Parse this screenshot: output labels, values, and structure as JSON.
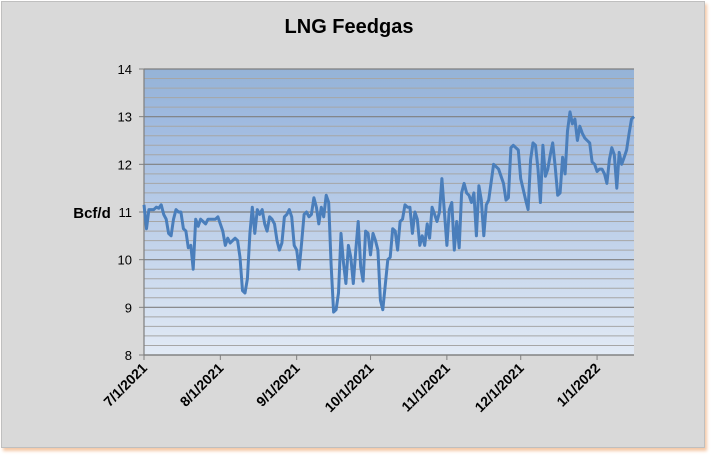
{
  "chart_data": {
    "type": "line",
    "title": "LNG Feedgas",
    "xlabel": "",
    "ylabel": "Bcf/d",
    "ylim": [
      8,
      14
    ],
    "yticks": [
      8,
      9,
      10,
      11,
      12,
      13,
      14
    ],
    "ytick_labels": [
      "8",
      "9",
      "10",
      "11",
      "12",
      "13",
      "14"
    ],
    "minor_grid_step": 0.2,
    "x_units": "days since 7/1/2021",
    "xlim": [
      0,
      199
    ],
    "xticks": [
      0,
      31,
      62,
      92,
      123,
      153,
      184
    ],
    "xtick_labels": [
      "7/1/2021",
      "8/1/2021",
      "9/1/2021",
      "10/1/2021",
      "11/1/2021",
      "12/1/2021",
      "1/1/2022"
    ],
    "grid": true,
    "legend": "none",
    "series": [
      {
        "name": "LNG Feedgas",
        "color": "#4a7ebb",
        "points": [
          [
            0,
            11.15
          ],
          [
            1,
            10.65
          ],
          [
            2,
            11.05
          ],
          [
            4,
            11.05
          ],
          [
            5,
            11.1
          ],
          [
            6,
            11.08
          ],
          [
            7,
            11.15
          ],
          [
            8,
            10.95
          ],
          [
            9,
            10.85
          ],
          [
            10,
            10.55
          ],
          [
            11,
            10.5
          ],
          [
            12,
            10.85
          ],
          [
            13,
            11.05
          ],
          [
            14,
            11.0
          ],
          [
            15,
            11.0
          ],
          [
            16,
            10.65
          ],
          [
            17,
            10.6
          ],
          [
            18,
            10.25
          ],
          [
            19,
            10.3
          ],
          [
            20,
            9.8
          ],
          [
            21,
            10.85
          ],
          [
            22,
            10.7
          ],
          [
            23,
            10.85
          ],
          [
            24,
            10.8
          ],
          [
            25,
            10.75
          ],
          [
            26,
            10.85
          ],
          [
            28,
            10.85
          ],
          [
            29,
            10.85
          ],
          [
            30,
            10.9
          ],
          [
            31,
            10.75
          ],
          [
            32,
            10.6
          ],
          [
            33,
            10.3
          ],
          [
            34,
            10.45
          ],
          [
            35,
            10.35
          ],
          [
            36,
            10.4
          ],
          [
            37,
            10.45
          ],
          [
            38,
            10.4
          ],
          [
            39,
            10.05
          ],
          [
            40,
            9.35
          ],
          [
            41,
            9.3
          ],
          [
            42,
            9.6
          ],
          [
            43,
            10.55
          ],
          [
            44,
            11.1
          ],
          [
            45,
            10.55
          ],
          [
            46,
            11.05
          ],
          [
            47,
            10.95
          ],
          [
            48,
            11.05
          ],
          [
            49,
            10.75
          ],
          [
            50,
            10.6
          ],
          [
            51,
            10.9
          ],
          [
            52,
            10.85
          ],
          [
            53,
            10.75
          ],
          [
            54,
            10.4
          ],
          [
            55,
            10.2
          ],
          [
            56,
            10.35
          ],
          [
            57,
            10.9
          ],
          [
            58,
            10.95
          ],
          [
            59,
            11.05
          ],
          [
            60,
            10.9
          ],
          [
            61,
            10.3
          ],
          [
            62,
            10.2
          ],
          [
            63,
            9.8
          ],
          [
            64,
            10.35
          ],
          [
            65,
            10.95
          ],
          [
            66,
            11.0
          ],
          [
            67,
            10.9
          ],
          [
            68,
            10.95
          ],
          [
            69,
            11.3
          ],
          [
            70,
            11.1
          ],
          [
            71,
            10.75
          ],
          [
            72,
            11.1
          ],
          [
            73,
            10.9
          ],
          [
            74,
            11.35
          ],
          [
            75,
            11.2
          ],
          [
            76,
            9.9
          ],
          [
            77,
            8.9
          ],
          [
            78,
            8.95
          ],
          [
            79,
            9.3
          ],
          [
            80,
            10.55
          ],
          [
            81,
            9.95
          ],
          [
            82,
            9.5
          ],
          [
            83,
            10.3
          ],
          [
            84,
            10.05
          ],
          [
            85,
            9.5
          ],
          [
            86,
            10.2
          ],
          [
            87,
            10.8
          ],
          [
            88,
            9.85
          ],
          [
            89,
            9.55
          ],
          [
            90,
            10.6
          ],
          [
            91,
            10.55
          ],
          [
            92,
            10.1
          ],
          [
            93,
            10.55
          ],
          [
            94,
            10.4
          ],
          [
            95,
            10.2
          ],
          [
            96,
            9.15
          ],
          [
            97,
            8.95
          ],
          [
            99,
            10.0
          ],
          [
            100,
            10.05
          ],
          [
            101,
            10.65
          ],
          [
            102,
            10.6
          ],
          [
            103,
            10.2
          ],
          [
            104,
            10.8
          ],
          [
            105,
            10.85
          ],
          [
            106,
            11.15
          ],
          [
            107,
            11.1
          ],
          [
            108,
            11.1
          ],
          [
            109,
            10.55
          ],
          [
            110,
            11.0
          ],
          [
            111,
            10.85
          ],
          [
            112,
            10.3
          ],
          [
            113,
            10.5
          ],
          [
            114,
            10.3
          ],
          [
            115,
            10.75
          ],
          [
            116,
            10.45
          ],
          [
            117,
            11.1
          ],
          [
            118,
            10.95
          ],
          [
            119,
            10.8
          ],
          [
            120,
            11.0
          ],
          [
            121,
            11.7
          ],
          [
            122,
            11.0
          ],
          [
            123,
            10.3
          ],
          [
            124,
            11.05
          ],
          [
            125,
            11.2
          ],
          [
            126,
            10.2
          ],
          [
            127,
            10.8
          ],
          [
            128,
            10.25
          ],
          [
            129,
            11.4
          ],
          [
            130,
            11.6
          ],
          [
            131,
            11.4
          ],
          [
            132,
            11.35
          ],
          [
            133,
            11.2
          ],
          [
            134,
            11.4
          ],
          [
            135,
            10.5
          ],
          [
            136,
            11.55
          ],
          [
            137,
            11.25
          ],
          [
            138,
            10.5
          ],
          [
            139,
            11.15
          ],
          [
            140,
            11.25
          ],
          [
            142,
            12.0
          ],
          [
            144,
            11.9
          ],
          [
            146,
            11.6
          ],
          [
            147,
            11.25
          ],
          [
            148,
            11.3
          ],
          [
            149,
            12.35
          ],
          [
            150,
            12.4
          ],
          [
            151,
            12.35
          ],
          [
            152,
            12.3
          ],
          [
            153,
            11.7
          ],
          [
            155,
            11.25
          ],
          [
            156,
            11.05
          ],
          [
            157,
            12.1
          ],
          [
            158,
            12.45
          ],
          [
            159,
            12.4
          ],
          [
            160,
            11.9
          ],
          [
            161,
            11.2
          ],
          [
            162,
            12.4
          ],
          [
            163,
            11.75
          ],
          [
            164,
            11.9
          ],
          [
            165,
            12.2
          ],
          [
            166,
            12.45
          ],
          [
            167,
            11.95
          ],
          [
            168,
            11.35
          ],
          [
            169,
            11.4
          ],
          [
            170,
            12.15
          ],
          [
            171,
            11.8
          ],
          [
            172,
            12.7
          ],
          [
            173,
            13.1
          ],
          [
            174,
            12.85
          ],
          [
            175,
            12.95
          ],
          [
            176,
            12.5
          ],
          [
            177,
            12.8
          ],
          [
            178,
            12.65
          ],
          [
            179,
            12.55
          ],
          [
            180,
            12.5
          ],
          [
            181,
            12.45
          ],
          [
            182,
            12.05
          ],
          [
            183,
            12.0
          ],
          [
            184,
            11.85
          ],
          [
            185,
            11.9
          ],
          [
            186,
            11.9
          ],
          [
            187,
            11.8
          ],
          [
            188,
            11.6
          ],
          [
            189,
            12.1
          ],
          [
            190,
            12.35
          ],
          [
            191,
            12.2
          ],
          [
            192,
            11.5
          ],
          [
            193,
            12.25
          ],
          [
            194,
            12.0
          ],
          [
            195,
            12.15
          ],
          [
            196,
            12.3
          ],
          [
            197,
            12.65
          ],
          [
            198,
            12.95
          ],
          [
            199,
            13.0
          ]
        ]
      }
    ]
  }
}
